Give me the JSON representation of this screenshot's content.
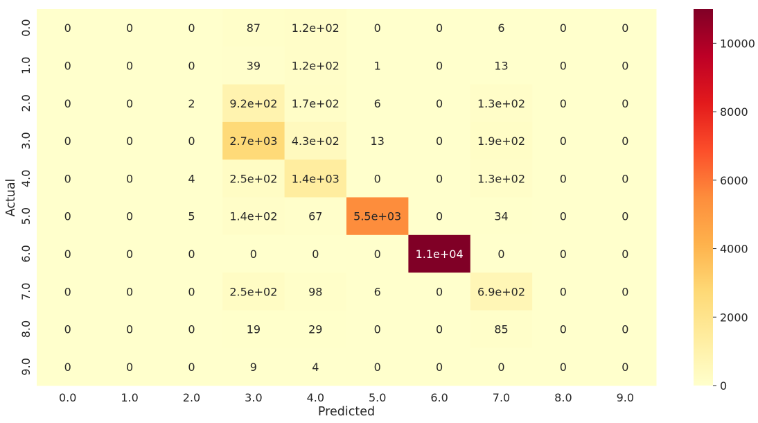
{
  "chart_data": {
    "type": "heatmap",
    "xlabel": "Predicted",
    "ylabel": "Actual",
    "x_categories": [
      "0.0",
      "1.0",
      "2.0",
      "3.0",
      "4.0",
      "5.0",
      "6.0",
      "7.0",
      "8.0",
      "9.0"
    ],
    "y_categories": [
      "0.0",
      "1.0",
      "2.0",
      "3.0",
      "4.0",
      "5.0",
      "6.0",
      "7.0",
      "8.0",
      "9.0"
    ],
    "values": [
      [
        0,
        0,
        0,
        87,
        120,
        0,
        0,
        6,
        0,
        0
      ],
      [
        0,
        0,
        0,
        39,
        120,
        1,
        0,
        13,
        0,
        0
      ],
      [
        0,
        0,
        2,
        920,
        170,
        6,
        0,
        130,
        0,
        0
      ],
      [
        0,
        0,
        0,
        2700,
        430,
        13,
        0,
        190,
        0,
        0
      ],
      [
        0,
        0,
        4,
        250,
        1400,
        0,
        0,
        130,
        0,
        0
      ],
      [
        0,
        0,
        5,
        140,
        67,
        5500,
        0,
        34,
        0,
        0
      ],
      [
        0,
        0,
        0,
        0,
        0,
        0,
        11000,
        0,
        0,
        0
      ],
      [
        0,
        0,
        0,
        250,
        98,
        6,
        0,
        690,
        0,
        0
      ],
      [
        0,
        0,
        0,
        19,
        29,
        0,
        0,
        85,
        0,
        0
      ],
      [
        0,
        0,
        0,
        9,
        4,
        0,
        0,
        0,
        0,
        0
      ]
    ],
    "annotations": [
      [
        "0",
        "0",
        "0",
        "87",
        "1.2e+02",
        "0",
        "0",
        "6",
        "0",
        "0"
      ],
      [
        "0",
        "0",
        "0",
        "39",
        "1.2e+02",
        "1",
        "0",
        "13",
        "0",
        "0"
      ],
      [
        "0",
        "0",
        "2",
        "9.2e+02",
        "1.7e+02",
        "6",
        "0",
        "1.3e+02",
        "0",
        "0"
      ],
      [
        "0",
        "0",
        "0",
        "2.7e+03",
        "4.3e+02",
        "13",
        "0",
        "1.9e+02",
        "0",
        "0"
      ],
      [
        "0",
        "0",
        "4",
        "2.5e+02",
        "1.4e+03",
        "0",
        "0",
        "1.3e+02",
        "0",
        "0"
      ],
      [
        "0",
        "0",
        "5",
        "1.4e+02",
        "67",
        "5.5e+03",
        "0",
        "34",
        "0",
        "0"
      ],
      [
        "0",
        "0",
        "0",
        "0",
        "0",
        "0",
        "1.1e+04",
        "0",
        "0",
        "0"
      ],
      [
        "0",
        "0",
        "0",
        "2.5e+02",
        "98",
        "6",
        "0",
        "6.9e+02",
        "0",
        "0"
      ],
      [
        "0",
        "0",
        "0",
        "19",
        "29",
        "0",
        "0",
        "85",
        "0",
        "0"
      ],
      [
        "0",
        "0",
        "0",
        "9",
        "4",
        "0",
        "0",
        "0",
        "0",
        "0"
      ]
    ],
    "colormap": "YlOrRd",
    "colorbar": {
      "vmin": 0,
      "vmax": 11000,
      "ticks": [
        0,
        2000,
        4000,
        6000,
        8000,
        10000
      ],
      "tick_labels": [
        "0",
        "2000",
        "4000",
        "6000",
        "8000",
        "10000"
      ]
    },
    "grid": false,
    "legend": "colorbar-right"
  }
}
